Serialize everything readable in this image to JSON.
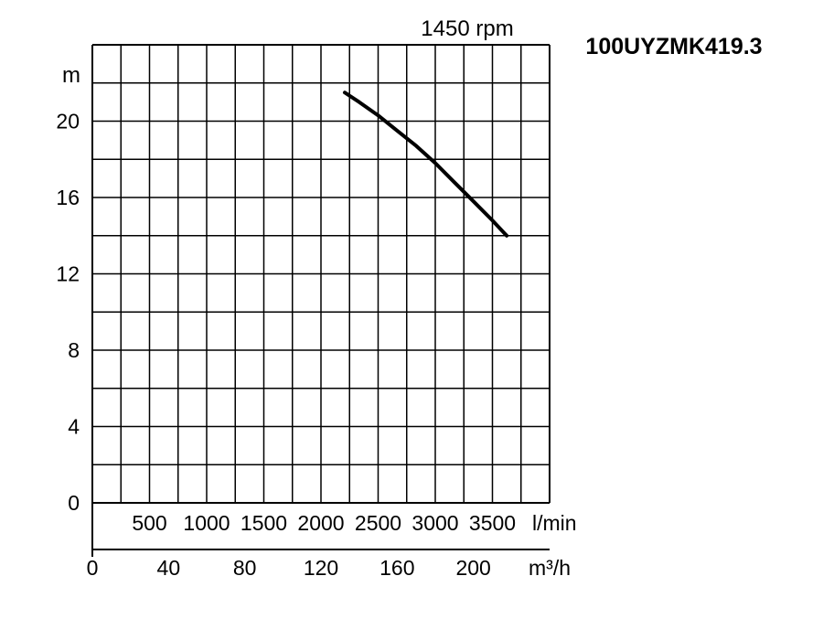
{
  "chart_data": {
    "type": "line",
    "model": "100UYZMK419.3",
    "speed_label": "1450 rpm",
    "y_unit": "m",
    "x_unit": "m³/h",
    "secondary_x_unit": "l/min",
    "ylim": [
      0,
      24
    ],
    "xlim": [
      0,
      240
    ],
    "y_ticks": [
      "0",
      "4",
      "8",
      "12",
      "16",
      "20"
    ],
    "x_ticks": [
      "0",
      "40",
      "80",
      "120",
      "160",
      "200"
    ],
    "secondary_x_ticks": [
      "500",
      "1000",
      "1500",
      "2000",
      "2500",
      "3000",
      "3500"
    ],
    "grid": true,
    "series": [
      {
        "x": [
          132.5,
          140,
          150,
          160,
          170,
          180,
          190,
          200,
          210,
          217.5
        ],
        "y": [
          21.5,
          21.0,
          20.3,
          19.5,
          18.7,
          17.8,
          16.8,
          15.8,
          14.8,
          14.0
        ]
      }
    ]
  }
}
